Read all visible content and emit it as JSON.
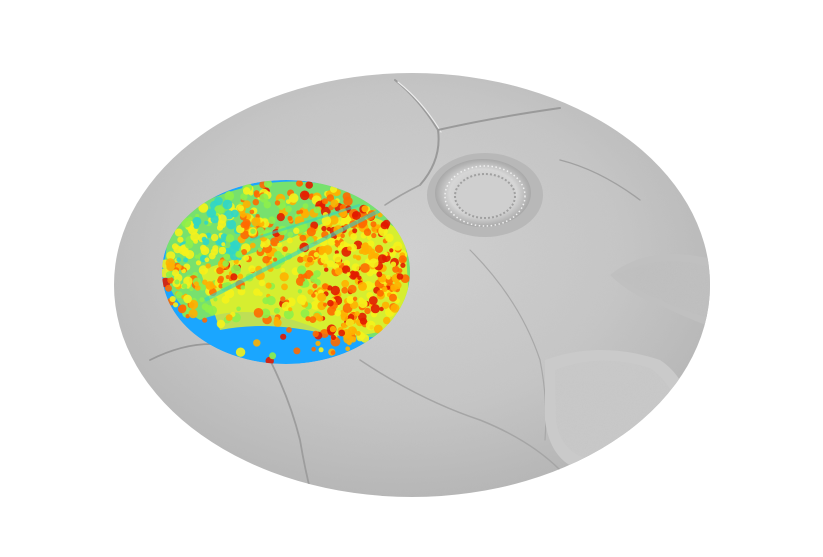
{
  "scene": {
    "background": "#ffffff",
    "hillshade_base": "#c4c4c4",
    "hillshade_light": "#e6e6e6",
    "hillshade_dark": "#8f8f8f",
    "point_cloud_colormap": "jet",
    "colormap_stops": [
      "#1f5fff",
      "#1aa6ff",
      "#2fd6c8",
      "#8ef04a",
      "#f5f21c",
      "#ffb000",
      "#ff6a00",
      "#e21b00"
    ],
    "features": [
      "hillshade-terrain",
      "crater-mound",
      "rocky-outcrop",
      "road-tracks",
      "colored-lidar-point-cloud"
    ]
  }
}
